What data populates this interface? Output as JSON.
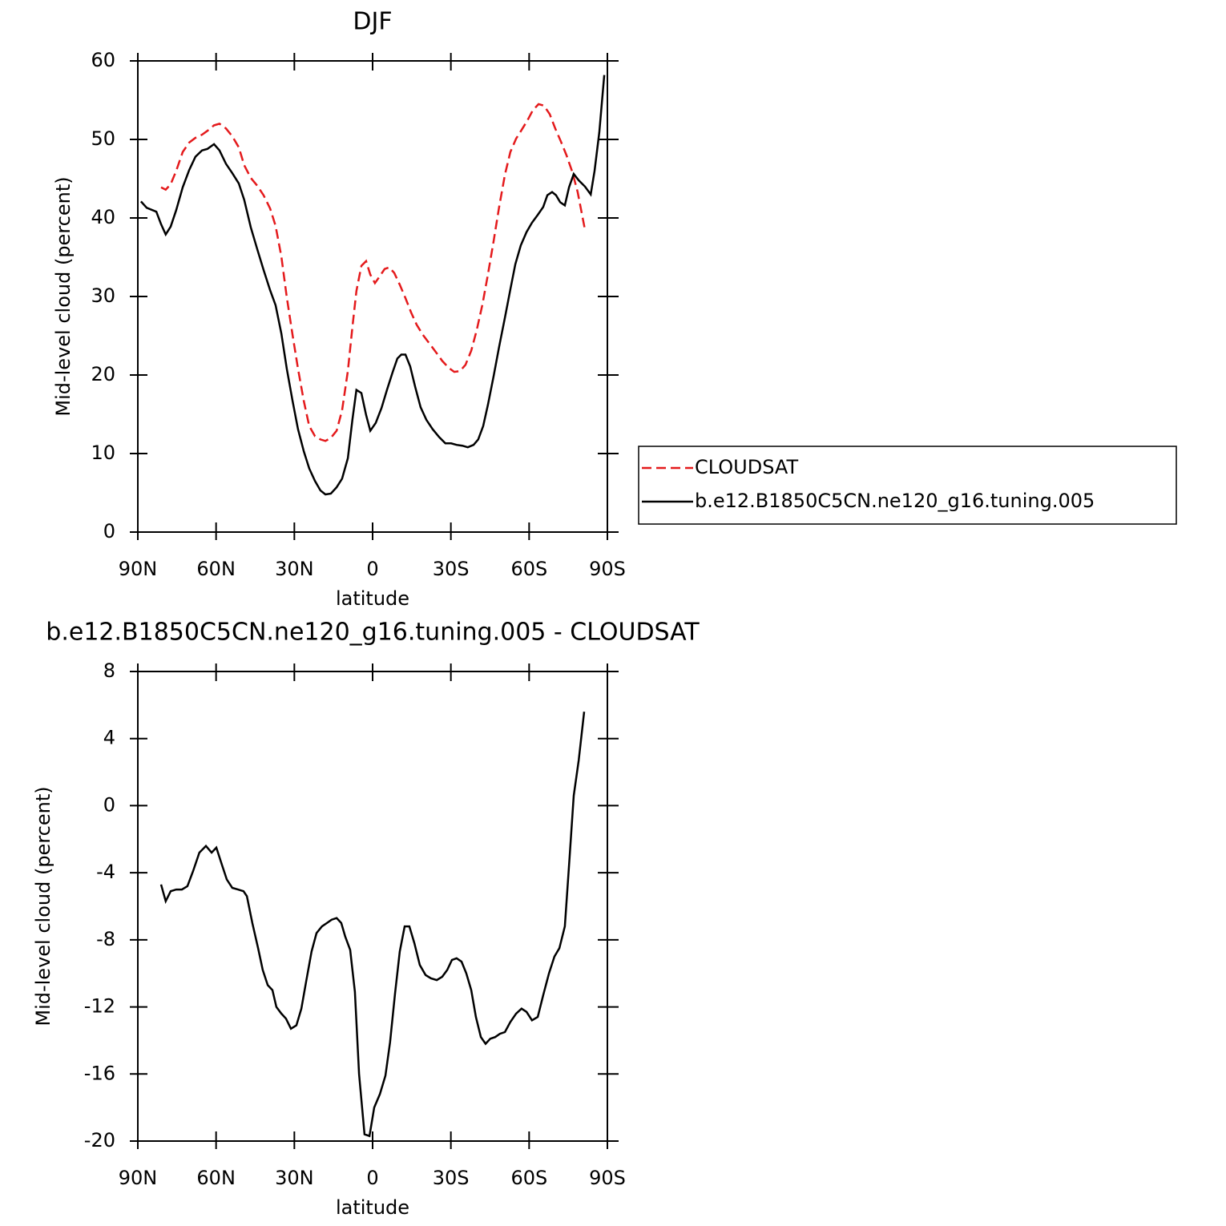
{
  "chart_data": [
    {
      "type": "line",
      "title": "DJF",
      "xlabel": "latitude",
      "ylabel": "Mid-level cloud (percent)",
      "xlim": [
        90,
        -90
      ],
      "xticks": [
        {
          "value": 90,
          "label": "90N"
        },
        {
          "value": 60,
          "label": "60N"
        },
        {
          "value": 30,
          "label": "30N"
        },
        0,
        {
          "value": -30,
          "label": "30S"
        },
        {
          "value": -60,
          "label": "60S"
        },
        {
          "value": -90,
          "label": "90S"
        }
      ],
      "ylim": [
        0,
        60
      ],
      "yticks": [
        0,
        10,
        20,
        30,
        40,
        50,
        60
      ],
      "legend": "right",
      "series": [
        {
          "name": "CLOUDSAT",
          "color": "#e41a1c",
          "dash": true,
          "x": [
            81.1,
            79.3,
            77.4,
            75.3,
            72.8,
            70.3,
            67.9,
            65.4,
            63.3,
            60.8,
            58.7,
            56.2,
            53.8,
            51.3,
            49.2,
            46.7,
            44.2,
            41.8,
            39.3,
            37.2,
            35.0,
            32.9,
            30.7,
            28.6,
            26.4,
            24.3,
            22.1,
            20.0,
            18.1,
            16.0,
            13.8,
            11.7,
            9.5,
            7.7,
            6.2,
            4.3,
            2.5,
            0.9,
            -0.9,
            -2.8,
            -4.6,
            -6.4,
            -8.3,
            -10.4,
            -12.6,
            -14.7,
            -16.9,
            -19.3,
            -21.8,
            -24.3,
            -26.7,
            -29.2,
            -31.3,
            -33.5,
            -35.6,
            -37.8,
            -39.9,
            -42.1,
            -44.2,
            -46.4,
            -48.5,
            -50.7,
            -52.8,
            -55.0,
            -57.1,
            -59.3,
            -61.4,
            -63.6,
            -65.7,
            -67.9,
            -70.0,
            -72.2,
            -74.3,
            -76.5,
            -78.6,
            -81.4
          ],
          "values": [
            43.9,
            43.6,
            44.3,
            46.0,
            48.4,
            49.6,
            50.2,
            50.6,
            51.1,
            51.8,
            52.0,
            51.4,
            50.4,
            49.0,
            46.7,
            45.1,
            44.1,
            42.9,
            41.2,
            39.0,
            35.1,
            29.9,
            25.1,
            20.8,
            16.7,
            13.5,
            12.2,
            11.8,
            11.6,
            12.0,
            12.9,
            15.5,
            20.5,
            26.2,
            30.7,
            33.9,
            34.5,
            32.8,
            31.7,
            32.6,
            33.5,
            33.7,
            33.0,
            31.5,
            29.8,
            28.0,
            26.4,
            25.1,
            24.0,
            22.9,
            21.8,
            20.9,
            20.4,
            20.5,
            21.3,
            23.1,
            25.7,
            29.0,
            32.8,
            37.1,
            41.4,
            45.5,
            48.4,
            50.1,
            51.2,
            52.4,
            53.7,
            54.5,
            54.3,
            53.2,
            51.4,
            49.7,
            48.0,
            45.9,
            43.3,
            38.5
          ]
        },
        {
          "name": "b.e12.B1850C5CN.ne120_g16.tuning.005",
          "color": "#000000",
          "dash": false,
          "x": [
            88.8,
            86.6,
            82.9,
            81.1,
            79.3,
            77.4,
            75.3,
            72.8,
            70.3,
            67.9,
            65.4,
            63.3,
            60.8,
            58.7,
            56.2,
            53.8,
            51.3,
            49.2,
            46.7,
            44.2,
            41.8,
            39.3,
            37.2,
            35.0,
            32.9,
            30.7,
            28.6,
            26.4,
            24.3,
            22.1,
            20.0,
            18.1,
            16.0,
            13.8,
            11.7,
            9.5,
            7.7,
            6.2,
            4.3,
            2.5,
            0.9,
            -1.2,
            -3.4,
            -5.5,
            -7.7,
            -9.5,
            -11.0,
            -12.6,
            -14.4,
            -16.3,
            -18.4,
            -20.6,
            -23.0,
            -25.5,
            -27.9,
            -30.1,
            -32.2,
            -34.4,
            -36.5,
            -38.7,
            -40.5,
            -42.4,
            -44.2,
            -46.4,
            -48.5,
            -50.7,
            -52.8,
            -54.7,
            -56.8,
            -59.0,
            -61.1,
            -63.3,
            -65.4,
            -67.0,
            -68.8,
            -70.3,
            -71.9,
            -73.7,
            -75.3,
            -77.1,
            -79.0,
            -81.4,
            -83.6,
            -85.1,
            -86.9,
            -88.8
          ],
          "values": [
            42.1,
            41.3,
            40.8,
            39.2,
            37.9,
            38.9,
            41.0,
            43.9,
            46.1,
            47.8,
            48.6,
            48.8,
            49.4,
            48.6,
            46.9,
            45.7,
            44.4,
            42.3,
            38.8,
            36.0,
            33.4,
            30.8,
            28.9,
            25.3,
            20.8,
            16.7,
            13.1,
            10.3,
            8.1,
            6.5,
            5.3,
            4.8,
            4.9,
            5.7,
            6.8,
            9.4,
            14.4,
            18.1,
            17.7,
            14.9,
            12.9,
            13.9,
            15.8,
            18.1,
            20.4,
            22.1,
            22.6,
            22.6,
            21.1,
            18.5,
            15.9,
            14.3,
            13.1,
            12.1,
            11.3,
            11.3,
            11.1,
            11.0,
            10.8,
            11.1,
            11.8,
            13.5,
            16.2,
            19.9,
            23.6,
            27.3,
            30.9,
            34.1,
            36.5,
            38.2,
            39.4,
            40.4,
            41.4,
            42.9,
            43.3,
            42.9,
            42.0,
            41.6,
            43.9,
            45.6,
            44.8,
            44.0,
            43.0,
            46.0,
            50.9,
            58.2
          ]
        }
      ]
    },
    {
      "type": "line",
      "title": "b.e12.B1850C5CN.ne120_g16.tuning.005 - CLOUDSAT",
      "xlabel": "latitude",
      "ylabel": "Mid-level cloud (percent)",
      "xlim": [
        90,
        -90
      ],
      "xticks": [
        {
          "value": 90,
          "label": "90N"
        },
        {
          "value": 60,
          "label": "60N"
        },
        {
          "value": 30,
          "label": "30N"
        },
        0,
        {
          "value": -30,
          "label": "30S"
        },
        {
          "value": -60,
          "label": "60S"
        },
        {
          "value": -90,
          "label": "90S"
        }
      ],
      "ylim": [
        -20,
        8
      ],
      "yticks": [
        -20,
        -16,
        -12,
        -8,
        -4,
        0,
        4,
        8
      ],
      "series": [
        {
          "color": "#000000",
          "dash": false,
          "x": [
            81.1,
            79.3,
            77.4,
            75.3,
            73.1,
            71.0,
            68.8,
            66.4,
            63.9,
            61.7,
            59.9,
            57.8,
            55.9,
            53.8,
            51.6,
            49.5,
            48.2,
            46.1,
            43.9,
            42.1,
            40.2,
            38.4,
            36.9,
            35.0,
            33.2,
            31.3,
            29.2,
            27.3,
            25.5,
            23.4,
            21.5,
            19.4,
            17.5,
            15.7,
            13.8,
            12.0,
            10.5,
            8.6,
            6.8,
            5.2,
            3.1,
            1.2,
            -0.6,
            -2.8,
            -4.9,
            -6.7,
            -8.6,
            -10.4,
            -12.3,
            -14.1,
            -16.0,
            -18.1,
            -20.3,
            -22.4,
            -24.6,
            -26.7,
            -28.6,
            -30.4,
            -32.2,
            -34.1,
            -35.9,
            -37.8,
            -39.6,
            -41.5,
            -43.3,
            -45.1,
            -47.0,
            -48.8,
            -50.7,
            -52.8,
            -55.0,
            -57.1,
            -59.0,
            -61.1,
            -63.3,
            -65.4,
            -67.6,
            -69.7,
            -71.6,
            -73.7,
            -75.5,
            -77.1,
            -79.0,
            -81.1
          ],
          "values": [
            -4.7,
            -5.7,
            -5.1,
            -5.0,
            -5.0,
            -4.8,
            -3.9,
            -2.8,
            -2.4,
            -2.8,
            -2.5,
            -3.5,
            -4.4,
            -4.9,
            -5.0,
            -5.1,
            -5.4,
            -7.0,
            -8.5,
            -9.8,
            -10.7,
            -11.0,
            -12.0,
            -12.4,
            -12.7,
            -13.3,
            -13.1,
            -12.1,
            -10.5,
            -8.7,
            -7.6,
            -7.2,
            -7.0,
            -6.8,
            -6.7,
            -7.0,
            -7.8,
            -8.6,
            -11.1,
            -16.0,
            -19.6,
            -19.7,
            -18.0,
            -17.2,
            -16.1,
            -14.1,
            -11.2,
            -8.7,
            -7.2,
            -7.2,
            -8.2,
            -9.5,
            -10.1,
            -10.3,
            -10.4,
            -10.2,
            -9.8,
            -9.2,
            -9.1,
            -9.3,
            -10.0,
            -11.0,
            -12.6,
            -13.8,
            -14.2,
            -13.9,
            -13.8,
            -13.6,
            -13.5,
            -12.9,
            -12.4,
            -12.1,
            -12.3,
            -12.8,
            -12.6,
            -11.3,
            -10.0,
            -9.0,
            -8.5,
            -7.2,
            -3.1,
            0.6,
            2.7,
            5.6
          ]
        }
      ]
    }
  ]
}
